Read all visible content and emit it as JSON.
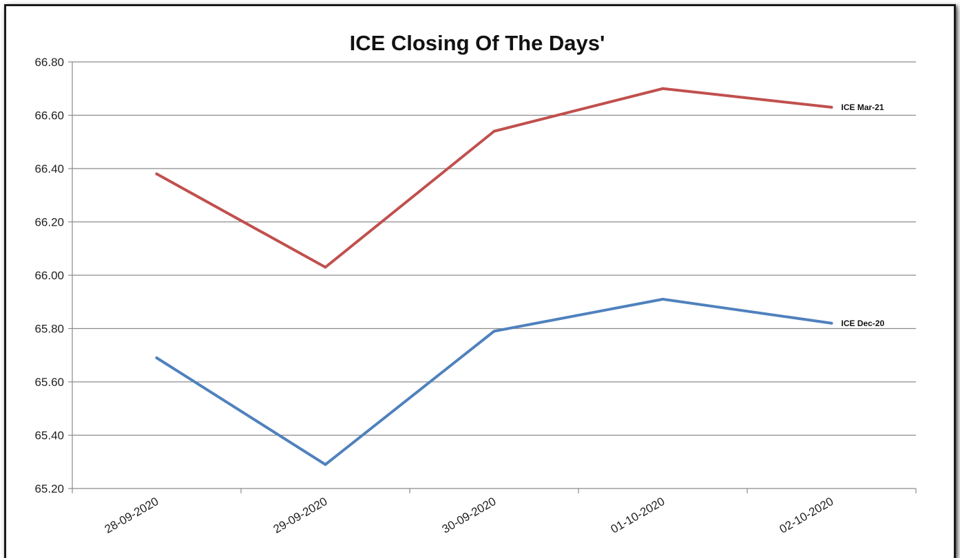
{
  "chart_data": {
    "type": "line",
    "title": "ICE Closing Of The Days'",
    "xlabel": "",
    "ylabel": "",
    "categories": [
      "28-09-2020",
      "29-09-2020",
      "30-09-2020",
      "01-10-2020",
      "02-10-2020"
    ],
    "y_ticks": [
      "65.20",
      "65.40",
      "65.60",
      "65.80",
      "66.00",
      "66.20",
      "66.40",
      "66.60",
      "66.80"
    ],
    "ylim": [
      65.2,
      66.8
    ],
    "grid": true,
    "legend": "inline labels at right end of lines",
    "series": [
      {
        "name": "ICE Mar-21",
        "color": "#c0504d",
        "values": [
          66.38,
          66.03,
          66.54,
          66.7,
          66.63
        ]
      },
      {
        "name": "ICE Dec-20",
        "color": "#4f81bd",
        "values": [
          65.69,
          65.29,
          65.79,
          65.91,
          65.82
        ]
      }
    ]
  }
}
